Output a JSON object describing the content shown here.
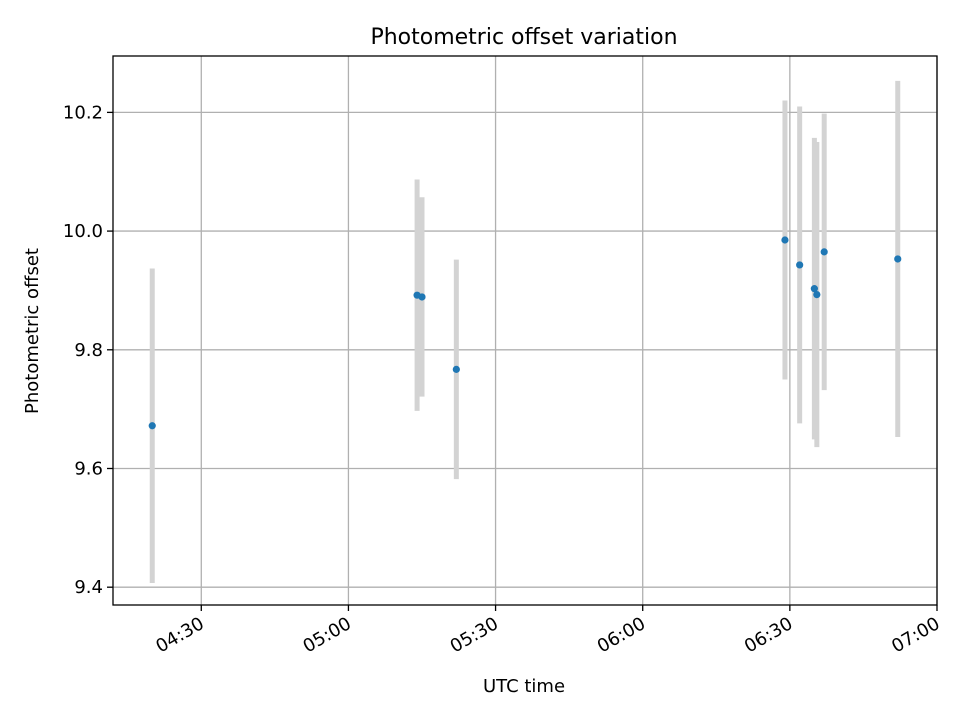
{
  "chart_data": {
    "type": "scatter",
    "title": "Photometric offset variation",
    "xlabel": "UTC time",
    "ylabel": "Photometric offset",
    "x_unit": "HH:MM",
    "xlim": [
      "04:12",
      "07:00"
    ],
    "ylim": [
      9.37,
      10.295
    ],
    "x_ticks": [
      "04:30",
      "05:00",
      "05:30",
      "06:00",
      "06:30",
      "07:00"
    ],
    "y_ticks": [
      9.4,
      9.6,
      9.8,
      10.0,
      10.2
    ],
    "y_tick_labels": [
      "9.4",
      "9.6",
      "9.8",
      "10.0",
      "10.2"
    ],
    "grid": true,
    "series": [
      {
        "color": "#1f77b4",
        "errorbar_color": "#d3d3d3",
        "points": [
          {
            "x": "04:20",
            "y": 9.672,
            "err": 0.265
          },
          {
            "x": "05:14",
            "y": 9.892,
            "err": 0.195
          },
          {
            "x": "05:15",
            "y": 9.889,
            "err": 0.168
          },
          {
            "x": "05:22",
            "y": 9.767,
            "err": 0.185
          },
          {
            "x": "06:29",
            "y": 9.985,
            "err": 0.235
          },
          {
            "x": "06:32",
            "y": 9.943,
            "err": 0.267
          },
          {
            "x": "06:35",
            "y": 9.903,
            "err": 0.254
          },
          {
            "x": "06:35.5",
            "y": 9.893,
            "err": 0.257
          },
          {
            "x": "06:37",
            "y": 9.965,
            "err": 0.233
          },
          {
            "x": "06:52",
            "y": 9.953,
            "err": 0.3
          }
        ]
      }
    ]
  }
}
